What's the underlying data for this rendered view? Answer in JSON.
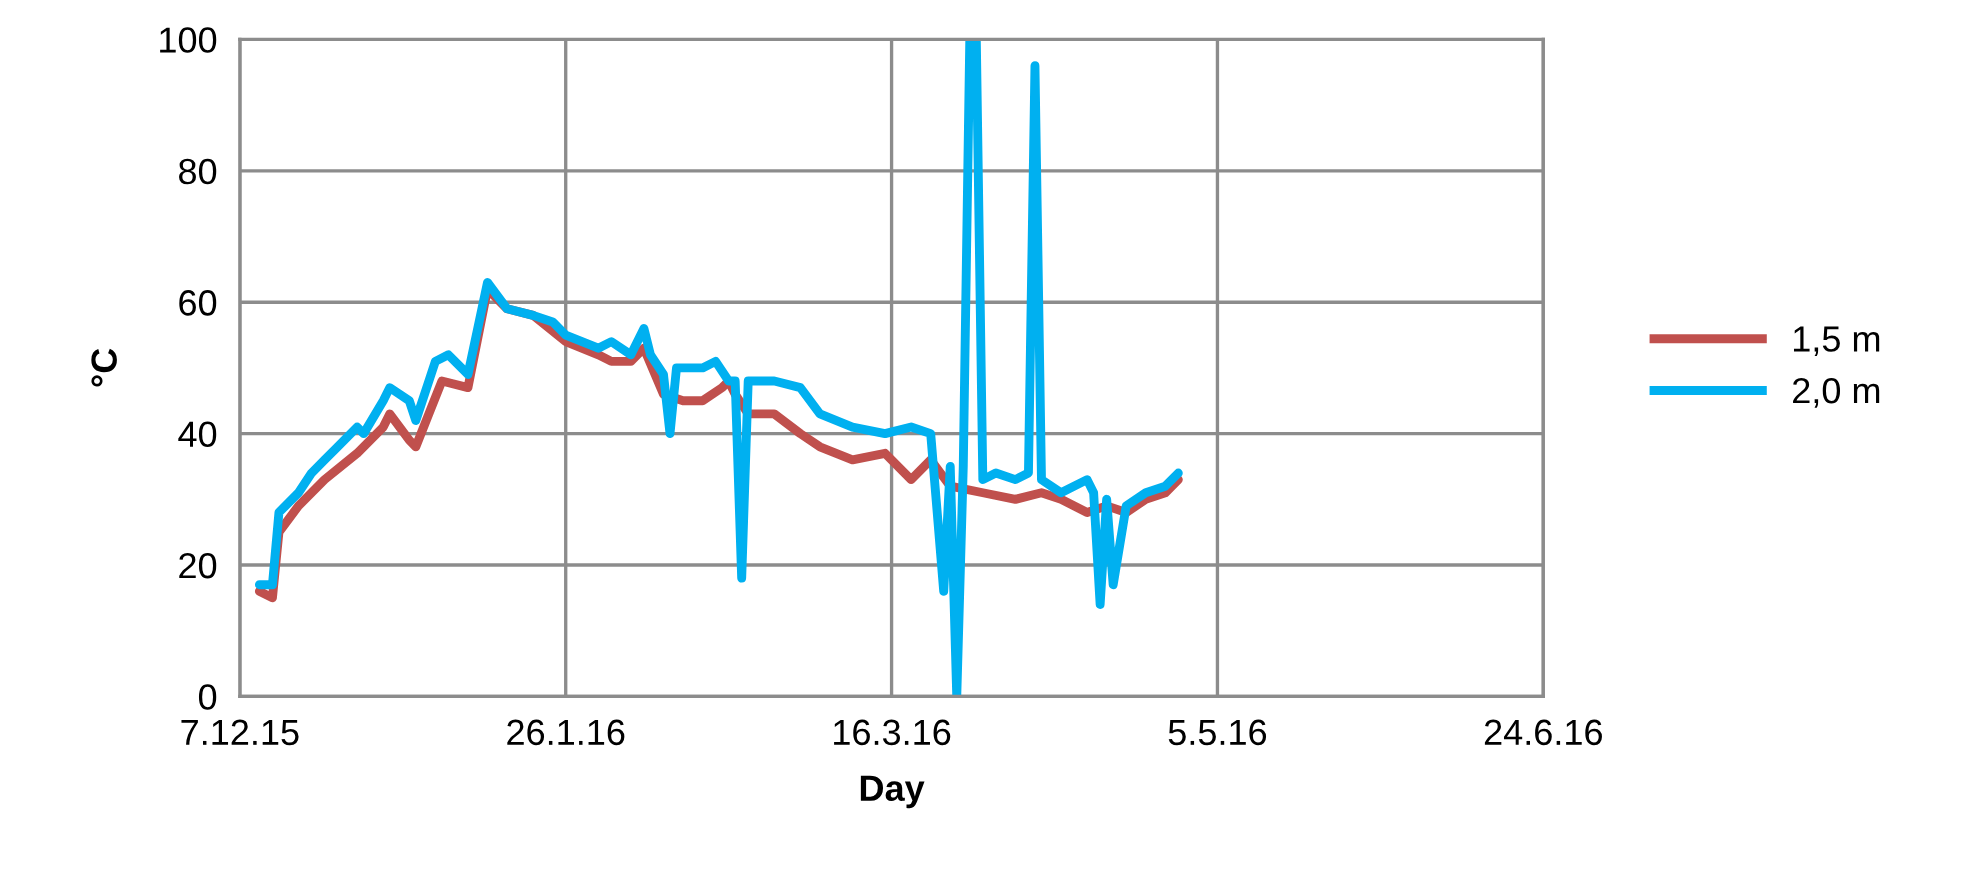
{
  "chart_data": {
    "type": "line",
    "xlabel": "Day",
    "ylabel": "°C",
    "xlim": [
      "2015-12-07",
      "2016-06-24"
    ],
    "xticks": [
      {
        "value": "2015-12-07",
        "label": "7.12.15"
      },
      {
        "value": "2016-01-26",
        "label": "26.1.16"
      },
      {
        "value": "2016-03-16",
        "label": "16.3.16"
      },
      {
        "value": "2016-05-05",
        "label": "5.5.16"
      },
      {
        "value": "2016-06-24",
        "label": "24.6.16"
      }
    ],
    "ylim": [
      0,
      100
    ],
    "yticks": [
      0,
      20,
      40,
      60,
      80,
      100
    ],
    "grid": true,
    "legend": "right",
    "marker": "none",
    "line_style": "solid",
    "series": [
      {
        "name": "1,5 m",
        "color": "#c0504d",
        "x": [
          "2015-12-10",
          "2015-12-12",
          "2015-12-13",
          "2015-12-16",
          "2015-12-20",
          "2015-12-25",
          "2015-12-29",
          "2015-12-30",
          "2016-01-02",
          "2016-01-03",
          "2016-01-05",
          "2016-01-07",
          "2016-01-11",
          "2016-01-14",
          "2016-01-17",
          "2016-01-21",
          "2016-01-26",
          "2016-01-31",
          "2016-02-02",
          "2016-02-05",
          "2016-02-07",
          "2016-02-10",
          "2016-02-13",
          "2016-02-16",
          "2016-02-19",
          "2016-02-20",
          "2016-02-21",
          "2016-02-23",
          "2016-02-27",
          "2016-03-02",
          "2016-03-05",
          "2016-03-10",
          "2016-03-15",
          "2016-03-19",
          "2016-03-22",
          "2016-03-25",
          "2016-03-30",
          "2016-04-04",
          "2016-04-08",
          "2016-04-11",
          "2016-04-15",
          "2016-04-18",
          "2016-04-21",
          "2016-04-24",
          "2016-04-27",
          "2016-04-29"
        ],
        "values": [
          16,
          15,
          25,
          29,
          33,
          37,
          41,
          43,
          39,
          38,
          43,
          48,
          47,
          62,
          59,
          58,
          54,
          52,
          51,
          51,
          53,
          46,
          45,
          45,
          47,
          48,
          46,
          43,
          43,
          40,
          38,
          36,
          37,
          33,
          36,
          32,
          31,
          30,
          31,
          30,
          28,
          29,
          28,
          30,
          31,
          33
        ]
      },
      {
        "name": "2,0 m",
        "color": "#00b0f0",
        "x": [
          "2015-12-10",
          "2015-12-12",
          "2015-12-13",
          "2015-12-16",
          "2015-12-18",
          "2015-12-20",
          "2015-12-22",
          "2015-12-25",
          "2015-12-26",
          "2015-12-29",
          "2015-12-30",
          "2016-01-02",
          "2016-01-03",
          "2016-01-05",
          "2016-01-06",
          "2016-01-08",
          "2016-01-11",
          "2016-01-14",
          "2016-01-17",
          "2016-01-21",
          "2016-01-24",
          "2016-01-26",
          "2016-01-31",
          "2016-02-02",
          "2016-02-05",
          "2016-02-07",
          "2016-02-08",
          "2016-02-10",
          "2016-02-11",
          "2016-02-12",
          "2016-02-16",
          "2016-02-18",
          "2016-02-20",
          "2016-02-21",
          "2016-02-22",
          "2016-02-23",
          "2016-02-27",
          "2016-03-02",
          "2016-03-05",
          "2016-03-10",
          "2016-03-15",
          "2016-03-19",
          "2016-03-22",
          "2016-03-24",
          "2016-03-25",
          "2016-03-26",
          "2016-03-27",
          "2016-03-28",
          "2016-03-29",
          "2016-03-30",
          "2016-04-01",
          "2016-04-04",
          "2016-04-06",
          "2016-04-07",
          "2016-04-08",
          "2016-04-11",
          "2016-04-15",
          "2016-04-16",
          "2016-04-17",
          "2016-04-18",
          "2016-04-19",
          "2016-04-21",
          "2016-04-24",
          "2016-04-27",
          "2016-04-29"
        ],
        "values": [
          17,
          17,
          28,
          31,
          34,
          36,
          38,
          41,
          40,
          45,
          47,
          45,
          42,
          48,
          51,
          52,
          49,
          63,
          59,
          58,
          57,
          55,
          53,
          54,
          52,
          56,
          52,
          49,
          40,
          50,
          50,
          51,
          48,
          48,
          18,
          48,
          48,
          47,
          43,
          41,
          40,
          41,
          40,
          16,
          35,
          0,
          35,
          100,
          100,
          33,
          34,
          33,
          34,
          96,
          33,
          31,
          33,
          31,
          14,
          30,
          17,
          29,
          31,
          32,
          34
        ]
      }
    ]
  }
}
